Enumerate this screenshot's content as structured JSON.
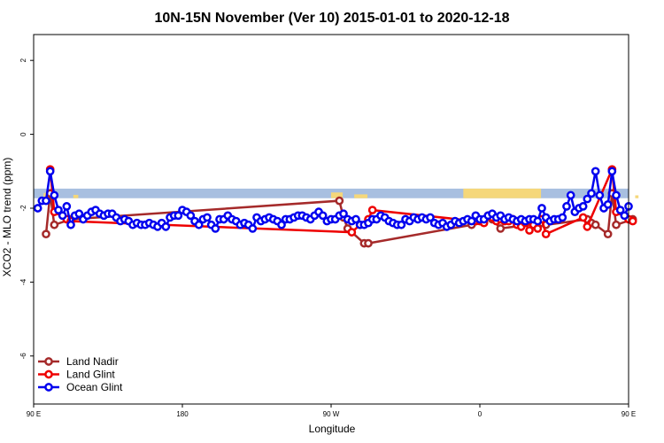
{
  "chart_data": {
    "type": "line",
    "title": "10N-15N November (Ver 10)   2015-01-01 to 2020-12-18",
    "xlabel": "Longitude",
    "ylabel": "XCO2 - MLO trend (ppm)",
    "xlim": [
      90,
      450
    ],
    "ylim": [
      -7.3,
      2.7
    ],
    "x_ticks": [
      {
        "value": 90,
        "label": "90 E"
      },
      {
        "value": 180,
        "label": "180"
      },
      {
        "value": 270,
        "label": "90 W"
      },
      {
        "value": 360,
        "label": "0"
      },
      {
        "value": 450,
        "label": "90 E"
      },
      {
        "value": 540,
        "label": "180"
      }
    ],
    "y_ticks": [
      {
        "value": 2,
        "label": "2"
      },
      {
        "value": 0,
        "label": "0"
      },
      {
        "value": -2,
        "label": "-2"
      },
      {
        "value": -4,
        "label": "-4"
      },
      {
        "value": -6,
        "label": "-6"
      }
    ],
    "land_band": {
      "y_top": -1.47,
      "y_bottom": -1.73,
      "ocean_color": "#a8bfe0",
      "land_color": "#f5d77a"
    },
    "legend": {
      "position": "bottom-left"
    },
    "series": [
      {
        "name": "Land Nadir",
        "color": "#a52a2a",
        "points": [
          [
            97.5,
            -2.7
          ],
          [
            100,
            -1.6
          ],
          [
            102.5,
            -2.45
          ],
          [
            112.5,
            -2.3
          ],
          [
            275,
            -1.8
          ],
          [
            277.5,
            -2.25
          ],
          [
            280,
            -2.55
          ],
          [
            290,
            -2.95
          ],
          [
            292.5,
            -2.95
          ],
          [
            355,
            -2.45
          ],
          [
            357.5,
            -2.35
          ],
          [
            367.5,
            -2.3
          ],
          [
            372.5,
            -2.55
          ],
          [
            397.5,
            -2.4
          ],
          [
            400,
            -2.45
          ],
          [
            425,
            -2.3
          ],
          [
            427.5,
            -2.4
          ],
          [
            430,
            -2.45
          ],
          [
            437.5,
            -2.7
          ],
          [
            440,
            -1.6
          ],
          [
            442.5,
            -2.45
          ],
          [
            452.5,
            -2.3
          ]
        ]
      },
      {
        "name": "Land Glint",
        "color": "#ee0000",
        "points": [
          [
            100,
            -0.95
          ],
          [
            102.5,
            -2.1
          ],
          [
            110,
            -2.3
          ],
          [
            112.5,
            -2.35
          ],
          [
            282.5,
            -2.65
          ],
          [
            287.5,
            -2.45
          ],
          [
            292.5,
            -2.3
          ],
          [
            295,
            -2.05
          ],
          [
            357.5,
            -2.35
          ],
          [
            360,
            -2.35
          ],
          [
            362.5,
            -2.4
          ],
          [
            365,
            -2.2
          ],
          [
            367.5,
            -2.25
          ],
          [
            370,
            -2.35
          ],
          [
            372.5,
            -2.3
          ],
          [
            375,
            -2.35
          ],
          [
            377.5,
            -2.35
          ],
          [
            380,
            -2.3
          ],
          [
            382.5,
            -2.45
          ],
          [
            385,
            -2.5
          ],
          [
            387.5,
            -2.4
          ],
          [
            390,
            -2.6
          ],
          [
            392.5,
            -2.45
          ],
          [
            395,
            -2.55
          ],
          [
            397.5,
            -2.3
          ],
          [
            400,
            -2.7
          ],
          [
            422.5,
            -2.25
          ],
          [
            425,
            -2.5
          ],
          [
            440,
            -0.95
          ],
          [
            442.5,
            -2.1
          ],
          [
            450,
            -2.3
          ],
          [
            452.5,
            -2.35
          ]
        ]
      },
      {
        "name": "Ocean Glint",
        "color": "#0000ee",
        "points": [
          [
            92.5,
            -2.0
          ],
          [
            95,
            -1.8
          ],
          [
            97.5,
            -1.8
          ],
          [
            100,
            -1.0
          ],
          [
            102.5,
            -1.65
          ],
          [
            105,
            -2.05
          ],
          [
            107.5,
            -2.2
          ],
          [
            110,
            -1.95
          ],
          [
            112.5,
            -2.45
          ],
          [
            115,
            -2.2
          ],
          [
            117.5,
            -2.15
          ],
          [
            120,
            -2.3
          ],
          [
            122.5,
            -2.2
          ],
          [
            125,
            -2.1
          ],
          [
            127.5,
            -2.05
          ],
          [
            130,
            -2.15
          ],
          [
            132.5,
            -2.2
          ],
          [
            135,
            -2.15
          ],
          [
            137.5,
            -2.15
          ],
          [
            140,
            -2.25
          ],
          [
            142.5,
            -2.35
          ],
          [
            145,
            -2.3
          ],
          [
            147.5,
            -2.35
          ],
          [
            150,
            -2.45
          ],
          [
            152.5,
            -2.4
          ],
          [
            155,
            -2.45
          ],
          [
            157.5,
            -2.45
          ],
          [
            160,
            -2.4
          ],
          [
            162.5,
            -2.45
          ],
          [
            165,
            -2.5
          ],
          [
            167.5,
            -2.4
          ],
          [
            170,
            -2.5
          ],
          [
            172.5,
            -2.25
          ],
          [
            175,
            -2.2
          ],
          [
            177.5,
            -2.2
          ],
          [
            180,
            -2.05
          ],
          [
            182.5,
            -2.1
          ],
          [
            185,
            -2.2
          ],
          [
            187.5,
            -2.35
          ],
          [
            190,
            -2.45
          ],
          [
            192.5,
            -2.3
          ],
          [
            195,
            -2.25
          ],
          [
            197.5,
            -2.45
          ],
          [
            200,
            -2.55
          ],
          [
            202.5,
            -2.3
          ],
          [
            205,
            -2.3
          ],
          [
            207.5,
            -2.2
          ],
          [
            210,
            -2.3
          ],
          [
            212.5,
            -2.35
          ],
          [
            215,
            -2.45
          ],
          [
            217.5,
            -2.4
          ],
          [
            220,
            -2.45
          ],
          [
            222.5,
            -2.55
          ],
          [
            225,
            -2.25
          ],
          [
            227.5,
            -2.35
          ],
          [
            230,
            -2.3
          ],
          [
            232.5,
            -2.25
          ],
          [
            235,
            -2.3
          ],
          [
            237.5,
            -2.35
          ],
          [
            240,
            -2.45
          ],
          [
            242.5,
            -2.3
          ],
          [
            245,
            -2.3
          ],
          [
            247.5,
            -2.25
          ],
          [
            250,
            -2.2
          ],
          [
            252.5,
            -2.2
          ],
          [
            255,
            -2.25
          ],
          [
            257.5,
            -2.3
          ],
          [
            260,
            -2.2
          ],
          [
            262.5,
            -2.1
          ],
          [
            265,
            -2.2
          ],
          [
            267.5,
            -2.35
          ],
          [
            270,
            -2.3
          ],
          [
            272.5,
            -2.3
          ],
          [
            275,
            -2.2
          ],
          [
            277.5,
            -2.15
          ],
          [
            280,
            -2.3
          ],
          [
            282.5,
            -2.35
          ],
          [
            285,
            -2.3
          ],
          [
            287.5,
            -2.45
          ],
          [
            290,
            -2.45
          ],
          [
            292.5,
            -2.4
          ],
          [
            295,
            -2.3
          ],
          [
            297.5,
            -2.3
          ],
          [
            300,
            -2.2
          ],
          [
            302.5,
            -2.25
          ],
          [
            305,
            -2.35
          ],
          [
            307.5,
            -2.4
          ],
          [
            310,
            -2.45
          ],
          [
            312.5,
            -2.45
          ],
          [
            315,
            -2.3
          ],
          [
            317.5,
            -2.35
          ],
          [
            320,
            -2.25
          ],
          [
            322.5,
            -2.3
          ],
          [
            325,
            -2.25
          ],
          [
            327.5,
            -2.3
          ],
          [
            330,
            -2.25
          ],
          [
            332.5,
            -2.4
          ],
          [
            335,
            -2.45
          ],
          [
            337.5,
            -2.4
          ],
          [
            340,
            -2.5
          ],
          [
            342.5,
            -2.45
          ],
          [
            345,
            -2.35
          ],
          [
            347.5,
            -2.4
          ],
          [
            350,
            -2.35
          ],
          [
            352.5,
            -2.3
          ],
          [
            355,
            -2.35
          ],
          [
            357.5,
            -2.2
          ],
          [
            360,
            -2.3
          ],
          [
            362.5,
            -2.3
          ],
          [
            365,
            -2.2
          ],
          [
            367.5,
            -2.15
          ],
          [
            370,
            -2.25
          ],
          [
            372.5,
            -2.2
          ],
          [
            375,
            -2.3
          ],
          [
            377.5,
            -2.25
          ],
          [
            380,
            -2.3
          ],
          [
            382.5,
            -2.35
          ],
          [
            385,
            -2.3
          ],
          [
            387.5,
            -2.35
          ],
          [
            390,
            -2.3
          ],
          [
            392.5,
            -2.3
          ],
          [
            395,
            -2.35
          ],
          [
            397.5,
            -2.0
          ],
          [
            400,
            -2.25
          ],
          [
            402.5,
            -2.35
          ],
          [
            405,
            -2.3
          ],
          [
            407.5,
            -2.3
          ],
          [
            410,
            -2.25
          ],
          [
            412.5,
            -1.95
          ],
          [
            415,
            -1.65
          ],
          [
            417.5,
            -2.1
          ],
          [
            420,
            -2.0
          ],
          [
            422.5,
            -1.95
          ],
          [
            425,
            -1.75
          ],
          [
            427.5,
            -1.6
          ],
          [
            430,
            -1.0
          ],
          [
            432.5,
            -1.65
          ],
          [
            435,
            -2.0
          ],
          [
            437.5,
            -1.9
          ],
          [
            440,
            -1.0
          ],
          [
            442.5,
            -1.65
          ],
          [
            445,
            -2.05
          ],
          [
            447.5,
            -2.2
          ],
          [
            450,
            -1.95
          ]
        ]
      }
    ]
  }
}
